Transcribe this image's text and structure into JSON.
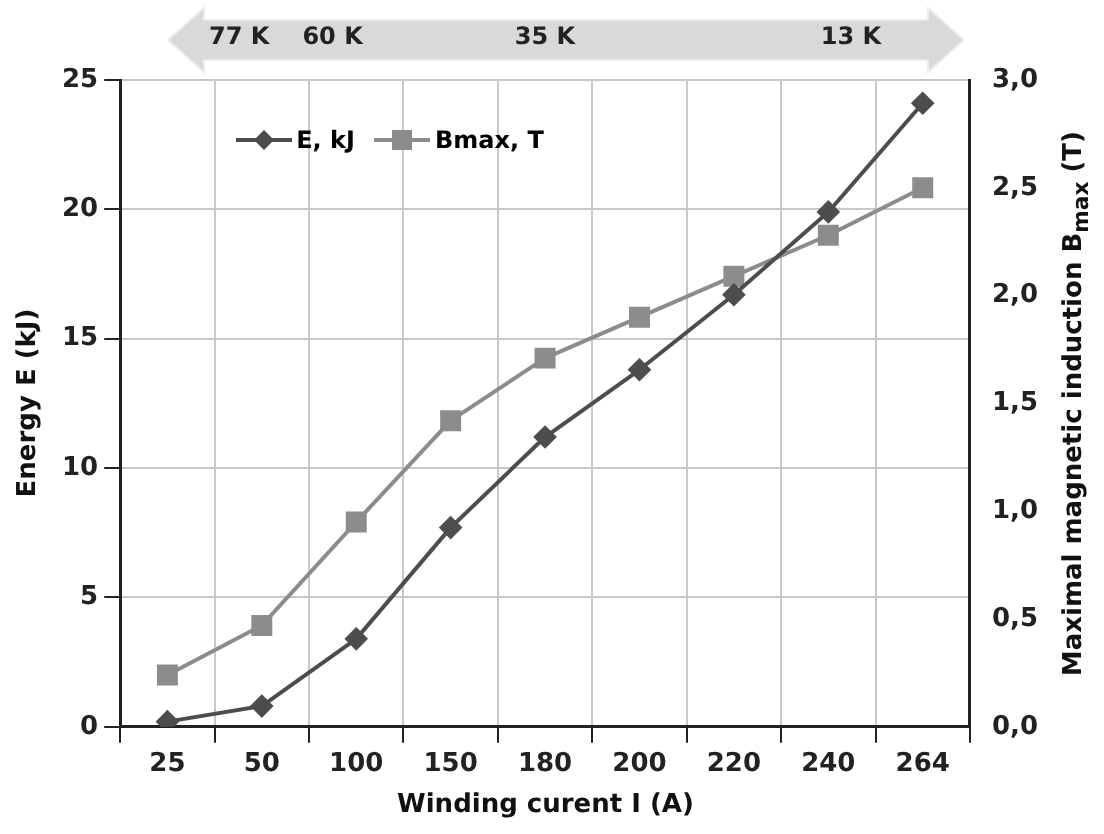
{
  "chart_data": {
    "type": "line",
    "xlabel": "Winding curent I (A)",
    "ylabel": "Energy E (kJ)",
    "y2label": "Maximal magnetic induction B$_{max}$ (T)",
    "categories": [
      "25",
      "50",
      "100",
      "150",
      "180",
      "200",
      "220",
      "240",
      "264"
    ],
    "series": [
      {
        "name": "E, kJ",
        "color": "#4d4d4d",
        "marker": "diamond",
        "values": [
          0.2,
          0.8,
          3.4,
          7.7,
          11.2,
          13.8,
          16.7,
          19.9,
          24.1
        ]
      },
      {
        "name": "Bmax, T",
        "color": "#8c8c8c",
        "marker": "square",
        "axis": "y2",
        "values": [
          0.24,
          0.47,
          0.95,
          1.42,
          1.71,
          1.9,
          2.09,
          2.28,
          2.5
        ]
      }
    ],
    "ylim": [
      0,
      25
    ],
    "yticks": [
      0,
      5,
      10,
      15,
      20,
      25
    ],
    "y2lim": [
      0,
      3
    ],
    "y2ticks": [
      {
        "value": 0,
        "label": "0,0"
      },
      {
        "value": 0.5,
        "label": "0,5"
      },
      {
        "value": 1,
        "label": "1,0"
      },
      {
        "value": 1.5,
        "label": "1,5"
      },
      {
        "value": 2,
        "label": "2,0"
      },
      {
        "value": 2.5,
        "label": "2,5"
      },
      {
        "value": 3,
        "label": "3,0"
      }
    ],
    "annotations": [
      "77 K",
      "60 K",
      "35 K",
      "13 K"
    ],
    "grid": true,
    "legend": "top left",
    "line_style": "solid"
  }
}
